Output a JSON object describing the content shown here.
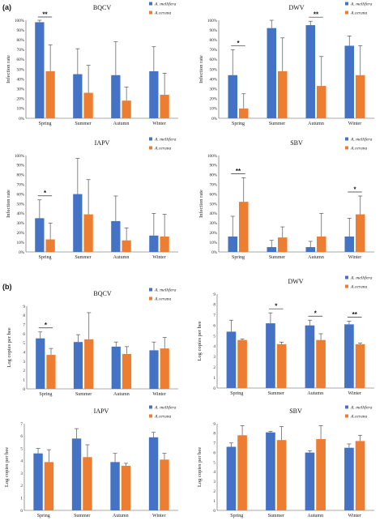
{
  "figure": {
    "panel_labels": [
      "(a)",
      "(b)"
    ],
    "colors": {
      "mellifera": "#4472c4",
      "cerana": "#ed7d31"
    },
    "sig_single": "*",
    "sig_double": "**"
  },
  "chart_data": [
    {
      "type": "bar",
      "title": "BQCV",
      "ylabel": "Infection rate",
      "ylim": [
        0,
        100
      ],
      "ytick_suffix": "%",
      "ytick_step": 10,
      "categories": [
        "Spring",
        "Summer",
        "Autumn",
        "Winter"
      ],
      "series": [
        {
          "name": "A. mellifera",
          "values": [
            98,
            45,
            44,
            48
          ],
          "errors": [
            2,
            26,
            34,
            25
          ]
        },
        {
          "name": "A.cerana",
          "values": [
            48,
            26,
            18,
            24
          ],
          "errors": [
            27,
            28,
            14,
            22
          ]
        }
      ],
      "significance": [
        {
          "category": 0,
          "label": "**"
        }
      ]
    },
    {
      "type": "bar",
      "title": "DWV",
      "ylabel": "Infection rate",
      "ylim": [
        0,
        100
      ],
      "ytick_suffix": "%",
      "ytick_step": 10,
      "categories": [
        "Spring",
        "Summer",
        "Autumn",
        "Winter"
      ],
      "series": [
        {
          "name": "A. mellifera",
          "values": [
            44,
            92,
            95,
            74
          ],
          "errors": [
            26,
            8,
            4,
            10
          ]
        },
        {
          "name": "A.cerana",
          "values": [
            10,
            48,
            33,
            44
          ],
          "errors": [
            15,
            34,
            30,
            30
          ]
        }
      ],
      "significance": [
        {
          "category": 0,
          "label": "*"
        },
        {
          "category": 2,
          "label": "**"
        }
      ]
    },
    {
      "type": "bar",
      "title": "IAPV",
      "ylabel": "Infection rate",
      "ylim": [
        0,
        100
      ],
      "ytick_suffix": "%",
      "ytick_step": 10,
      "categories": [
        "Spring",
        "Summer",
        "Autumn",
        "Winter"
      ],
      "series": [
        {
          "name": "A. mellifera",
          "values": [
            35,
            60,
            32,
            17
          ],
          "errors": [
            19,
            37,
            26,
            23
          ]
        },
        {
          "name": "A.cerana",
          "values": [
            13,
            39,
            12,
            16
          ],
          "errors": [
            17,
            36,
            13,
            23
          ]
        }
      ],
      "significance": [
        {
          "category": 0,
          "label": "*"
        }
      ]
    },
    {
      "type": "bar",
      "title": "SBV",
      "ylabel": "Infection rate",
      "ylim": [
        0,
        100
      ],
      "ytick_suffix": "%",
      "ytick_step": 10,
      "categories": [
        "Spring",
        "Summer",
        "Autumn",
        "Winter"
      ],
      "series": [
        {
          "name": "A. mellifera",
          "values": [
            16,
            5,
            5,
            16
          ],
          "errors": [
            21,
            7,
            6,
            19
          ]
        },
        {
          "name": "A.cerana",
          "values": [
            52,
            15,
            16,
            39
          ],
          "errors": [
            25,
            11,
            24,
            19
          ]
        }
      ],
      "significance": [
        {
          "category": 0,
          "label": "**"
        },
        {
          "category": 3,
          "label": "*"
        }
      ]
    },
    {
      "type": "bar",
      "title": "BQCV",
      "ylabel": "Log copies per bee",
      "ylim": [
        0,
        9
      ],
      "ytick_suffix": "",
      "ytick_step": 1,
      "categories": [
        "Spring",
        "Summer",
        "Autumn",
        "Winter"
      ],
      "series": [
        {
          "name": "A. mellifera",
          "values": [
            5.5,
            5.1,
            4.6,
            4.2
          ],
          "errors": [
            0.7,
            0.8,
            0.5,
            0.9
          ]
        },
        {
          "name": "A.cerana",
          "values": [
            3.7,
            5.4,
            3.8,
            4.4
          ],
          "errors": [
            0.7,
            2.9,
            0.8,
            1.2
          ]
        }
      ],
      "significance": [
        {
          "category": 0,
          "label": "*"
        }
      ]
    },
    {
      "type": "bar",
      "title": "DWV",
      "ylabel": "Log copies per bee",
      "ylim": [
        0,
        9
      ],
      "ytick_suffix": "",
      "ytick_step": 1,
      "categories": [
        "Spring",
        "Summer",
        "Autumn",
        "Winter"
      ],
      "series": [
        {
          "name": "A. mellifera",
          "values": [
            5.4,
            6.2,
            6.0,
            6.1
          ],
          "errors": [
            1.1,
            1.0,
            0.5,
            0.3
          ]
        },
        {
          "name": "A.cerana",
          "values": [
            4.6,
            4.2,
            4.6,
            4.2
          ],
          "errors": [
            0.1,
            0.2,
            0.6,
            0.1
          ]
        }
      ],
      "significance": [
        {
          "category": 1,
          "label": "*"
        },
        {
          "category": 2,
          "label": "*"
        },
        {
          "category": 3,
          "label": "**"
        }
      ]
    },
    {
      "type": "bar",
      "title": "IAPV",
      "ylabel": "Log copies per bee",
      "ylim": [
        0,
        7
      ],
      "ytick_suffix": "",
      "ytick_step": 1,
      "categories": [
        "Spring",
        "Summer",
        "Autumn",
        "Winter"
      ],
      "series": [
        {
          "name": "A. mellifera",
          "values": [
            4.6,
            5.8,
            3.9,
            5.9
          ],
          "errors": [
            0.4,
            0.8,
            0.7,
            0.4
          ]
        },
        {
          "name": "A.cerana",
          "values": [
            3.9,
            4.3,
            3.6,
            4.1
          ],
          "errors": [
            1.0,
            1.0,
            0.2,
            0.5
          ]
        }
      ],
      "significance": []
    },
    {
      "type": "bar",
      "title": "SBV",
      "ylabel": "Log copies per bee",
      "ylim": [
        0,
        9
      ],
      "ytick_suffix": "",
      "ytick_step": 1,
      "categories": [
        "Spring",
        "Summer",
        "Autumn",
        "Winter"
      ],
      "series": [
        {
          "name": "A. mellifera",
          "values": [
            6.6,
            8.1,
            6.0,
            6.5
          ],
          "errors": [
            0.4,
            0.1,
            0.2,
            0.4
          ]
        },
        {
          "name": "A.cerana",
          "values": [
            7.8,
            7.3,
            7.4,
            7.2
          ],
          "errors": [
            1.0,
            1.4,
            1.4,
            0.6
          ]
        }
      ],
      "significance": []
    }
  ]
}
